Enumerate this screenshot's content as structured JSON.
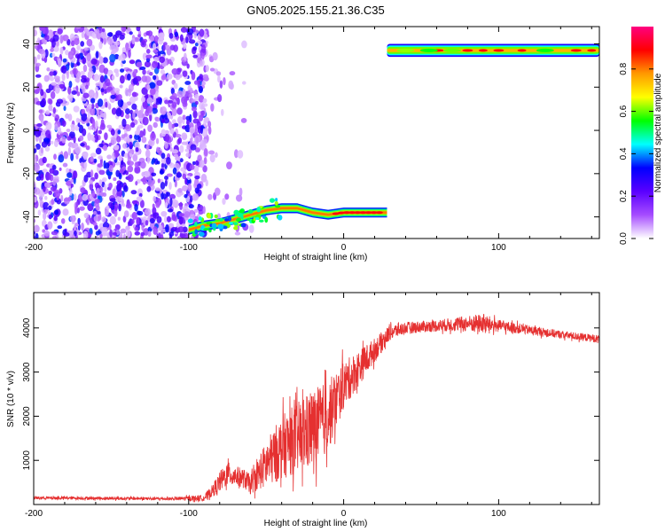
{
  "title": "GN05.2025.155.21.36.C35",
  "chart_data": [
    {
      "type": "heatmap",
      "xlabel": "Height of straight line (km)",
      "ylabel": "Frequency (Hz)",
      "xlim": [
        -200,
        165
      ],
      "ylim": [
        -50,
        48
      ],
      "x_ticks": [
        -200,
        -100,
        0,
        100
      ],
      "x_tick_labels": [
        "-200",
        "-100",
        "0",
        "100"
      ],
      "y_ticks": [
        -40,
        -20,
        0,
        20,
        40
      ],
      "y_tick_labels": [
        "-40",
        "-20",
        "0",
        "20",
        "40"
      ],
      "colorbar": {
        "label": "Normalized spectral amplitude",
        "range": [
          0,
          1
        ],
        "ticks": [
          0.0,
          0.2,
          0.4,
          0.6,
          0.8
        ],
        "tick_labels": [
          "0.0",
          "0.2",
          "0.4",
          "0.6",
          "0.8"
        ],
        "colormap": [
          "#ffffff",
          "#a64dff",
          "#5a00ff",
          "#0000ff",
          "#00ffff",
          "#00ff00",
          "#ffff00",
          "#ff9900",
          "#ff0000",
          "#ff0080"
        ]
      },
      "noise_region": {
        "x_range": [
          -200,
          -88
        ],
        "y_range": [
          -50,
          48
        ]
      },
      "tone_track": [
        {
          "x": -100,
          "y": -46
        },
        {
          "x": -90,
          "y": -44
        },
        {
          "x": -80,
          "y": -43
        },
        {
          "x": -70,
          "y": -41
        },
        {
          "x": -60,
          "y": -39
        },
        {
          "x": -50,
          "y": -37
        },
        {
          "x": -40,
          "y": -36
        },
        {
          "x": -30,
          "y": -36
        },
        {
          "x": -20,
          "y": -38
        },
        {
          "x": -10,
          "y": -39
        },
        {
          "x": 0,
          "y": -38
        },
        {
          "x": 10,
          "y": -38
        },
        {
          "x": 28,
          "y": -38
        }
      ],
      "upper_tone": {
        "x_range": [
          28,
          165
        ],
        "y": 37
      }
    },
    {
      "type": "line",
      "xlabel": "Height of straight line (km)",
      "ylabel": "SNR (10 * v/v)",
      "xlim": [
        -200,
        165
      ],
      "ylim": [
        0,
        4800
      ],
      "x_ticks": [
        -200,
        -100,
        0,
        100
      ],
      "x_tick_labels": [
        "-200",
        "-100",
        "0",
        "100"
      ],
      "y_ticks": [
        1000,
        2000,
        3000,
        4000
      ],
      "y_tick_labels": [
        "1000",
        "2000",
        "3000",
        "4000"
      ],
      "line_color": "#e53030",
      "envelope": {
        "x": [
          -200,
          -150,
          -110,
          -90,
          -85,
          -80,
          -75,
          -70,
          -65,
          -60,
          -55,
          -50,
          -40,
          -30,
          -20,
          -10,
          0,
          10,
          20,
          30,
          40,
          60,
          80,
          90,
          100,
          120,
          140,
          165
        ],
        "mean": [
          150,
          140,
          130,
          150,
          300,
          500,
          700,
          650,
          600,
          450,
          700,
          900,
          1300,
          1500,
          1700,
          2000,
          2700,
          3100,
          3500,
          3900,
          4000,
          4050,
          4100,
          4100,
          4050,
          3950,
          3850,
          3750
        ],
        "spread": [
          40,
          40,
          40,
          80,
          150,
          250,
          300,
          250,
          250,
          250,
          400,
          600,
          800,
          900,
          1000,
          900,
          600,
          450,
          300,
          200,
          150,
          150,
          200,
          250,
          150,
          120,
          100,
          100
        ]
      }
    }
  ]
}
